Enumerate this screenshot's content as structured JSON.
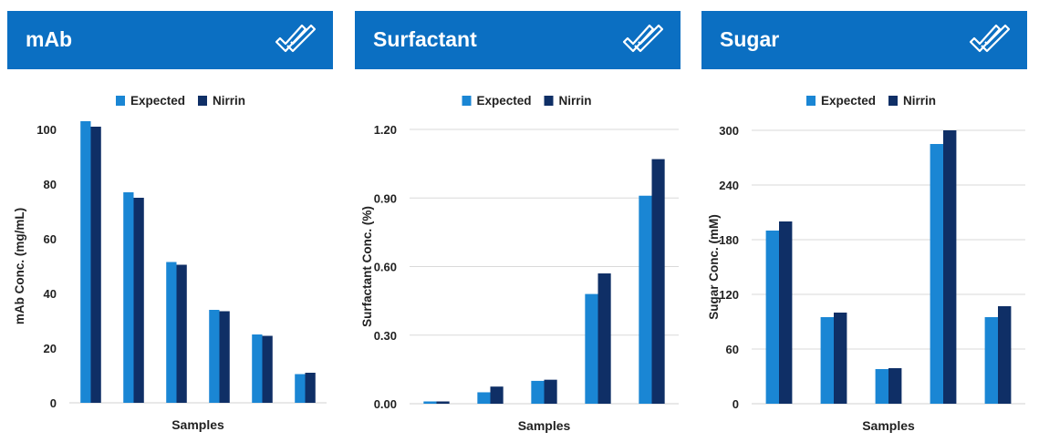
{
  "colors": {
    "header": "#0b6fc2",
    "expected": "#1a86d4",
    "nirrin": "#0f2f66"
  },
  "panels": [
    {
      "title": "mAb",
      "icon": "double-check-icon"
    },
    {
      "title": "Surfactant",
      "icon": "double-check-icon"
    },
    {
      "title": "Sugar",
      "icon": "double-check-icon"
    }
  ],
  "chart_data": [
    {
      "type": "bar",
      "title": "mAb",
      "xlabel": "Samples",
      "ylabel": "mAb Conc. (mg/mL)",
      "ylim": [
        0,
        100
      ],
      "yticks": [
        0,
        20,
        40,
        60,
        80,
        100
      ],
      "ytick_labels": [
        "0",
        "20",
        "40",
        "60",
        "80",
        "100"
      ],
      "grid": false,
      "legend": "top-center",
      "series": [
        {
          "name": "Expected",
          "values": [
            103,
            77,
            51.5,
            34,
            25,
            10.5
          ]
        },
        {
          "name": "Nirrin",
          "values": [
            101,
            75,
            50.5,
            33.5,
            24.5,
            11
          ]
        }
      ]
    },
    {
      "type": "bar",
      "title": "Surfactant",
      "xlabel": "Samples",
      "ylabel": "Surfactant Conc. (%)",
      "ylim": [
        0,
        1.2
      ],
      "yticks": [
        0,
        0.3,
        0.6,
        0.9,
        1.2
      ],
      "ytick_labels": [
        "0.00",
        "0.30",
        "0.60",
        "0.90",
        "1.20"
      ],
      "grid": true,
      "legend": "top-center",
      "series": [
        {
          "name": "Expected",
          "values": [
            0.01,
            0.05,
            0.1,
            0.48,
            0.91
          ]
        },
        {
          "name": "Nirrin",
          "values": [
            0.01,
            0.075,
            0.105,
            0.57,
            1.07
          ]
        }
      ]
    },
    {
      "type": "bar",
      "title": "Sugar",
      "xlabel": "Samples",
      "ylabel": "Sugar Conc. (mM)",
      "ylim": [
        0,
        300
      ],
      "yticks": [
        0,
        60,
        120,
        180,
        240,
        300
      ],
      "ytick_labels": [
        "0",
        "60",
        "120",
        "180",
        "240",
        "300"
      ],
      "grid": true,
      "legend": "top-center",
      "series": [
        {
          "name": "Expected",
          "values": [
            190,
            95,
            38,
            285,
            95
          ]
        },
        {
          "name": "Nirrin",
          "values": [
            200,
            100,
            39,
            300,
            107
          ]
        }
      ]
    }
  ]
}
